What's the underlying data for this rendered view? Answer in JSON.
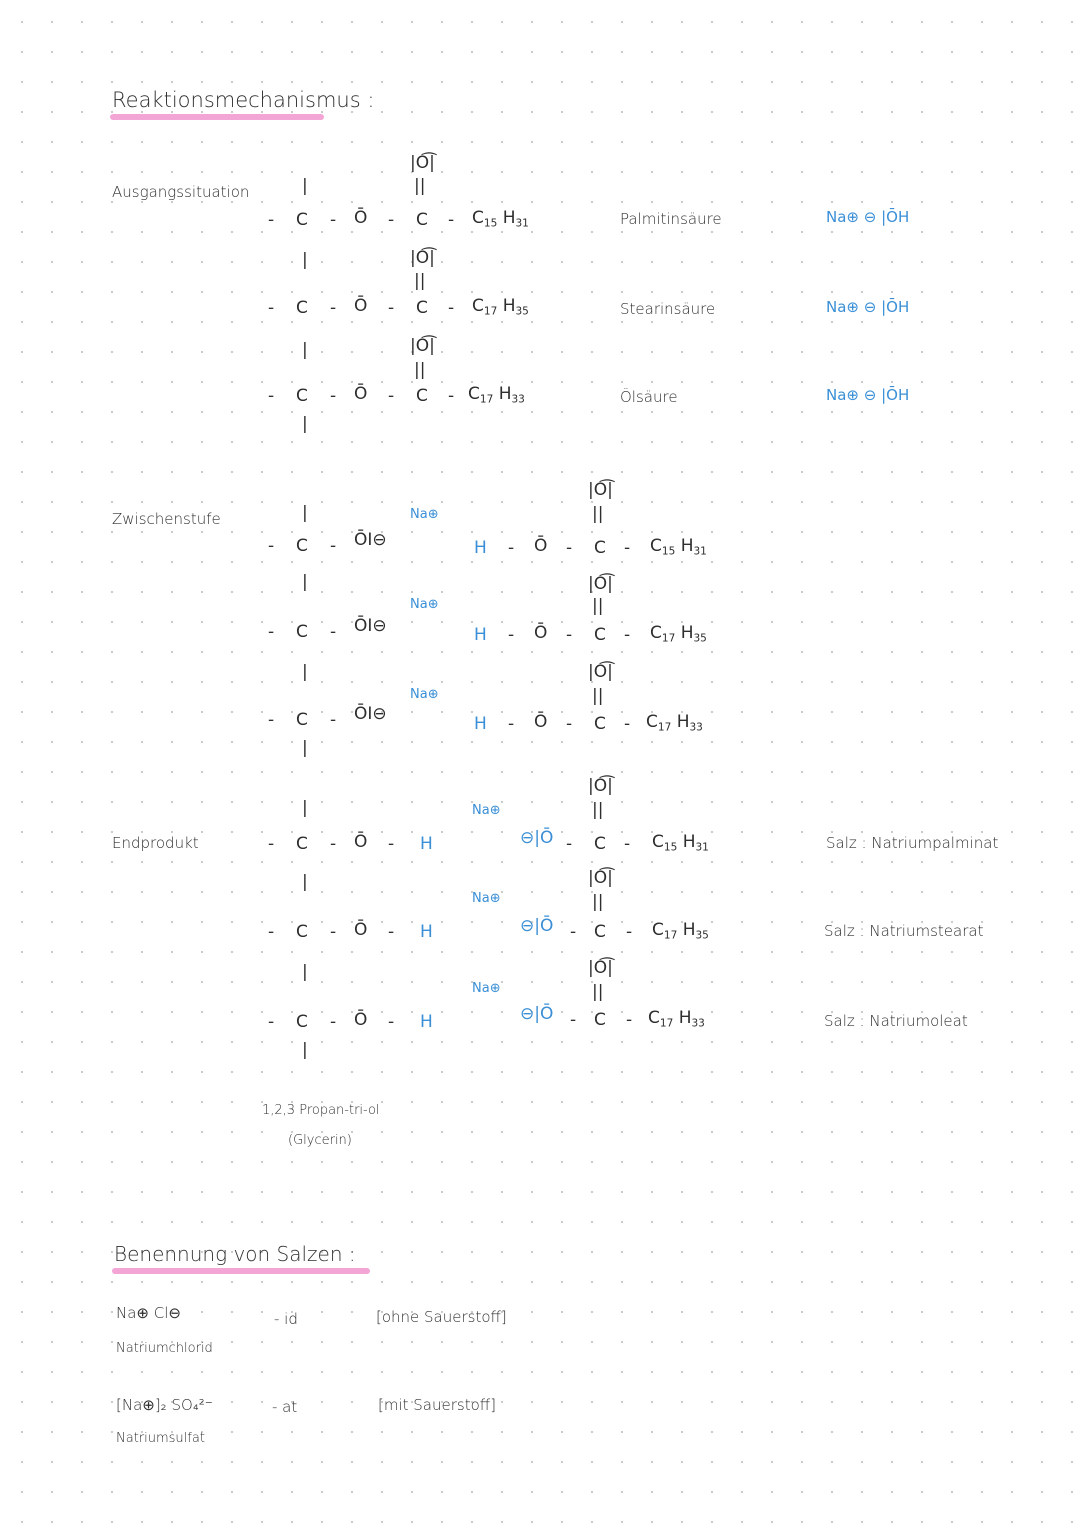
{
  "title": "Reaktionsmechanismus :",
  "sections": {
    "start": "Ausgangssituation",
    "intermediate": "Zwischenstufe",
    "end": "Endprodukt"
  },
  "acids": [
    {
      "name": "Palmitinsäure",
      "chain_c": "15",
      "chain_h": "31",
      "base": "Na⊕ ⊖ |ŌH"
    },
    {
      "name": "Stearinsäure",
      "chain_c": "17",
      "chain_h": "35",
      "base": "Na⊕ ⊖ |ŌH"
    },
    {
      "name": "Ölsäure",
      "chain_c": "17",
      "chain_h": "33",
      "base": "Na⊕ ⊖ |ŌH"
    }
  ],
  "salts": [
    "Salz : Natriumpalminat",
    "Salz : Natriumstearat",
    "Salz : Natriumoleat"
  ],
  "glycerin": {
    "name": "1,2,3 Propan-tri-ol",
    "common": "(Glycerin)"
  },
  "naming": {
    "title": "Benennung von Salzen :",
    "rows": [
      {
        "formula": "Na⊕   Cl⊖",
        "name": "Natriumchlorid",
        "suffix": "- id",
        "note": "[ohne Sauerstoff]"
      },
      {
        "formula": "[Na⊕]₂   SO₄²⁻",
        "name": "Natriumsulfat",
        "suffix": "- at",
        "note": "[mit Sauerstoff]"
      }
    ]
  },
  "labels": {
    "C": "C",
    "O": "Ō",
    "H": "H",
    "dash": "-",
    "bond": "|",
    "dbl": "||",
    "carbonyl": "|O͡|",
    "na": "Na⊕",
    "oneg": "ŌI⊖",
    "ominus": "⊖|Ō",
    "chain_c_prefix": "C",
    "chain_h_prefix": "H"
  },
  "colors": {
    "accent_blue": "#3a8fd6",
    "highlight_pink": "#f3a6d6",
    "ink": "#2e2e2e"
  }
}
